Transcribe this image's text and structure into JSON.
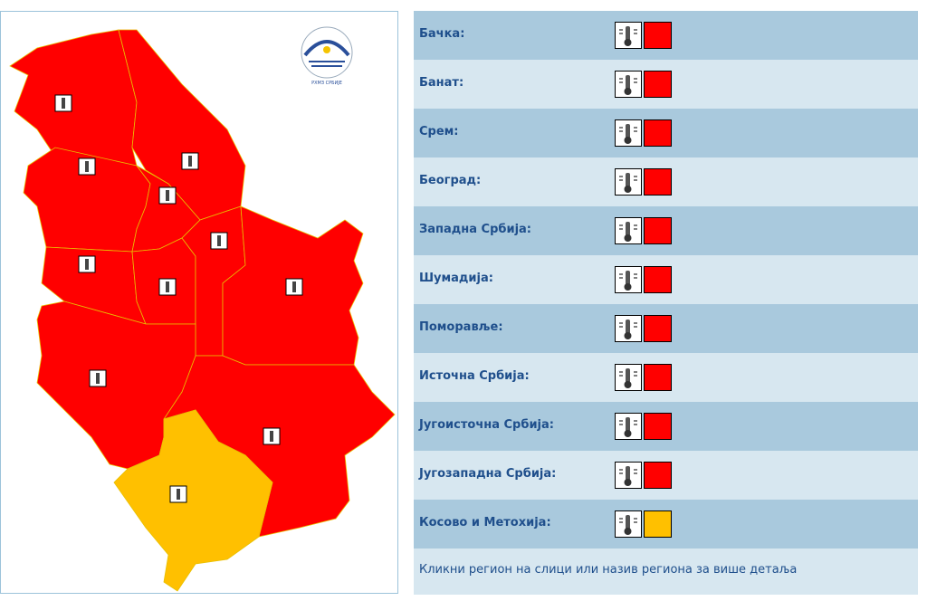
{
  "logo": "РХМЗ СРБИЈЕ",
  "regions": [
    {
      "name": "Бачка:",
      "color": "#ff0000"
    },
    {
      "name": "Банат:",
      "color": "#ff0000"
    },
    {
      "name": "Срем:",
      "color": "#ff0000"
    },
    {
      "name": "Београд:",
      "color": "#ff0000"
    },
    {
      "name": "Западна Србија:",
      "color": "#ff0000"
    },
    {
      "name": "Шумадија:",
      "color": "#ff0000"
    },
    {
      "name": "Поморавље:",
      "color": "#ff0000"
    },
    {
      "name": "Источна Србија:",
      "color": "#ff0000"
    },
    {
      "name": "Југоисточна Србија:",
      "color": "#ff0000"
    },
    {
      "name": "Југозападна Србија:",
      "color": "#ff0000"
    },
    {
      "name": "Косово и Метохија:",
      "color": "#ffc000"
    }
  ],
  "footer": "Кликни регион на слици или назив региона за више детаља"
}
